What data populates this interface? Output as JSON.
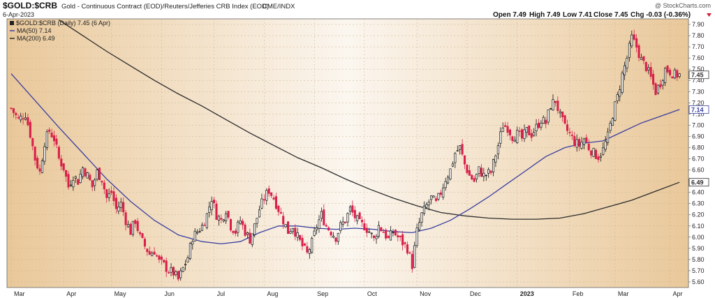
{
  "header": {
    "symbol": "$GOLD:$CRB",
    "description": "Gold - Continuous Contract (EOD)/Reuters/Jefferies CRB Index (EOD)",
    "exchange": "CME/INDX",
    "watermark": "@ StockCharts.com",
    "date": "6-Apr-2023",
    "open": "Open 7.49",
    "high": "High 7.49",
    "low": "Low 7.41",
    "close": "Close 7.45",
    "chg": "Chg -0.03 (-0.36%)",
    "chg_color": "#cc1f3a"
  },
  "legend": [
    {
      "label": "$GOLD:$CRB (Daily) 7.45 (6 Apr)",
      "color": "#222222"
    },
    {
      "label": "MA(50) 7.14",
      "color": "#3a3fa0"
    },
    {
      "label": "MA(200) 6.49",
      "color": "#2b2b2b"
    }
  ],
  "chart_data": {
    "type": "candlestick",
    "y_axis": {
      "min": 5.55,
      "max": 7.95,
      "position": "right",
      "ticks": [
        "5.60",
        "5.70",
        "5.80",
        "5.90",
        "6.00",
        "6.10",
        "6.20",
        "6.30",
        "6.40",
        "6.50",
        "6.60",
        "6.70",
        "6.80",
        "6.90",
        "7.00",
        "7.10",
        "7.20",
        "7.30",
        "7.40",
        "7.50",
        "7.60",
        "7.70",
        "7.80",
        "7.90"
      ],
      "tick_values": [
        5.6,
        5.7,
        5.8,
        5.9,
        6.0,
        6.1,
        6.2,
        6.3,
        6.4,
        6.5,
        6.6,
        6.7,
        6.8,
        6.9,
        7.0,
        7.1,
        7.2,
        7.3,
        7.4,
        7.5,
        7.6,
        7.7,
        7.8,
        7.9
      ]
    },
    "x_axis": {
      "labels": [
        "Mar",
        "Apr",
        "May",
        "Jun",
        "Jul",
        "Aug",
        "Sep",
        "Oct",
        "Nov",
        "Dec",
        "2023",
        "Feb",
        "Mar",
        "Apr"
      ],
      "label_days": [
        0,
        22,
        42,
        63,
        85,
        106,
        127,
        148,
        170,
        191,
        212,
        234,
        253,
        276
      ],
      "total_days": 282
    },
    "last_value_badges": [
      {
        "text": "7.45",
        "value": 7.45,
        "color": "#333333"
      },
      {
        "text": "7.14",
        "value": 7.14,
        "color": "#3a3fa0"
      },
      {
        "text": "6.49",
        "value": 6.49,
        "color": "#2b2b2b"
      }
    ],
    "price_series": [
      [
        0,
        7.15
      ],
      [
        3,
        7.05
      ],
      [
        6,
        7.1
      ],
      [
        8,
        6.92
      ],
      [
        10,
        6.7
      ],
      [
        12,
        6.58
      ],
      [
        14,
        6.85
      ],
      [
        16,
        6.95
      ],
      [
        18,
        6.88
      ],
      [
        20,
        6.7
      ],
      [
        22,
        6.62
      ],
      [
        24,
        6.45
      ],
      [
        26,
        6.55
      ],
      [
        28,
        6.5
      ],
      [
        30,
        6.62
      ],
      [
        32,
        6.55
      ],
      [
        34,
        6.45
      ],
      [
        36,
        6.58
      ],
      [
        38,
        6.52
      ],
      [
        40,
        6.35
      ],
      [
        42,
        6.4
      ],
      [
        44,
        6.25
      ],
      [
        46,
        6.3
      ],
      [
        48,
        6.15
      ],
      [
        50,
        6.05
      ],
      [
        52,
        6.15
      ],
      [
        54,
        6.0
      ],
      [
        56,
        5.92
      ],
      [
        58,
        5.85
      ],
      [
        60,
        5.88
      ],
      [
        62,
        5.78
      ],
      [
        64,
        5.75
      ],
      [
        66,
        5.7
      ],
      [
        68,
        5.68
      ],
      [
        70,
        5.62
      ],
      [
        72,
        5.72
      ],
      [
        74,
        5.82
      ],
      [
        76,
        6.0
      ],
      [
        78,
        6.05
      ],
      [
        80,
        6.1
      ],
      [
        82,
        6.2
      ],
      [
        84,
        6.35
      ],
      [
        86,
        6.2
      ],
      [
        88,
        6.15
      ],
      [
        90,
        6.25
      ],
      [
        92,
        6.1
      ],
      [
        94,
        6.05
      ],
      [
        96,
        6.15
      ],
      [
        98,
        6.05
      ],
      [
        100,
        5.98
      ],
      [
        102,
        6.1
      ],
      [
        104,
        6.25
      ],
      [
        106,
        6.35
      ],
      [
        108,
        6.42
      ],
      [
        110,
        6.35
      ],
      [
        112,
        6.25
      ],
      [
        114,
        6.15
      ],
      [
        116,
        6.05
      ],
      [
        118,
        6.1
      ],
      [
        120,
        6.0
      ],
      [
        122,
        5.92
      ],
      [
        124,
        5.85
      ],
      [
        126,
        5.95
      ],
      [
        128,
        6.1
      ],
      [
        130,
        6.2
      ],
      [
        132,
        6.1
      ],
      [
        134,
        6.05
      ],
      [
        136,
        6.0
      ],
      [
        138,
        6.1
      ],
      [
        140,
        6.15
      ],
      [
        142,
        6.25
      ],
      [
        144,
        6.18
      ],
      [
        146,
        6.12
      ],
      [
        148,
        6.1
      ],
      [
        150,
        6.05
      ],
      [
        152,
        5.98
      ],
      [
        154,
        6.1
      ],
      [
        156,
        6.05
      ],
      [
        158,
        5.98
      ],
      [
        160,
        6.05
      ],
      [
        162,
        6.0
      ],
      [
        164,
        5.95
      ],
      [
        166,
        5.9
      ],
      [
        168,
        5.75
      ],
      [
        170,
        6.05
      ],
      [
        172,
        6.2
      ],
      [
        174,
        6.28
      ],
      [
        176,
        6.35
      ],
      [
        178,
        6.3
      ],
      [
        180,
        6.4
      ],
      [
        182,
        6.52
      ],
      [
        184,
        6.6
      ],
      [
        186,
        6.75
      ],
      [
        188,
        6.8
      ],
      [
        190,
        6.65
      ],
      [
        192,
        6.55
      ],
      [
        194,
        6.5
      ],
      [
        196,
        6.6
      ],
      [
        198,
        6.55
      ],
      [
        201,
        6.58
      ],
      [
        204,
        6.82
      ],
      [
        206,
        7.0
      ],
      [
        208,
        6.98
      ],
      [
        210,
        6.9
      ],
      [
        212,
        6.92
      ],
      [
        214,
        6.88
      ],
      [
        216,
        6.95
      ],
      [
        218,
        6.92
      ],
      [
        220,
        6.98
      ],
      [
        222,
        7.05
      ],
      [
        224,
        7.02
      ],
      [
        226,
        7.18
      ],
      [
        228,
        7.22
      ],
      [
        230,
        7.08
      ],
      [
        232,
        6.98
      ],
      [
        234,
        6.92
      ],
      [
        236,
        6.85
      ],
      [
        238,
        6.82
      ],
      [
        240,
        6.88
      ],
      [
        242,
        6.8
      ],
      [
        244,
        6.75
      ],
      [
        246,
        6.72
      ],
      [
        248,
        6.78
      ],
      [
        250,
        6.9
      ],
      [
        252,
        7.1
      ],
      [
        254,
        7.25
      ],
      [
        256,
        7.45
      ],
      [
        258,
        7.6
      ],
      [
        260,
        7.78
      ],
      [
        262,
        7.7
      ],
      [
        264,
        7.58
      ],
      [
        266,
        7.52
      ],
      [
        268,
        7.42
      ],
      [
        270,
        7.3
      ],
      [
        272,
        7.38
      ],
      [
        274,
        7.5
      ],
      [
        276,
        7.48
      ],
      [
        278,
        7.45
      ],
      [
        280,
        7.45
      ]
    ],
    "ma50": [
      [
        0,
        7.46
      ],
      [
        10,
        7.22
      ],
      [
        20,
        6.98
      ],
      [
        30,
        6.75
      ],
      [
        40,
        6.52
      ],
      [
        50,
        6.32
      ],
      [
        60,
        6.15
      ],
      [
        70,
        6.02
      ],
      [
        80,
        5.96
      ],
      [
        88,
        5.94
      ],
      [
        96,
        5.96
      ],
      [
        104,
        6.04
      ],
      [
        112,
        6.1
      ],
      [
        120,
        6.1
      ],
      [
        128,
        6.08
      ],
      [
        136,
        6.07
      ],
      [
        144,
        6.08
      ],
      [
        152,
        6.07
      ],
      [
        160,
        6.05
      ],
      [
        168,
        6.04
      ],
      [
        176,
        6.08
      ],
      [
        184,
        6.15
      ],
      [
        192,
        6.25
      ],
      [
        200,
        6.36
      ],
      [
        208,
        6.48
      ],
      [
        216,
        6.6
      ],
      [
        224,
        6.72
      ],
      [
        232,
        6.8
      ],
      [
        240,
        6.84
      ],
      [
        248,
        6.86
      ],
      [
        256,
        6.94
      ],
      [
        264,
        7.02
      ],
      [
        272,
        7.08
      ],
      [
        280,
        7.14
      ]
    ],
    "ma200": [
      [
        20,
        7.94
      ],
      [
        30,
        7.8
      ],
      [
        40,
        7.66
      ],
      [
        50,
        7.53
      ],
      [
        60,
        7.4
      ],
      [
        70,
        7.28
      ],
      [
        80,
        7.17
      ],
      [
        90,
        7.05
      ],
      [
        100,
        6.93
      ],
      [
        110,
        6.82
      ],
      [
        120,
        6.71
      ],
      [
        130,
        6.62
      ],
      [
        140,
        6.52
      ],
      [
        150,
        6.43
      ],
      [
        160,
        6.35
      ],
      [
        170,
        6.28
      ],
      [
        180,
        6.22
      ],
      [
        190,
        6.19
      ],
      [
        200,
        6.17
      ],
      [
        210,
        6.16
      ],
      [
        220,
        6.16
      ],
      [
        230,
        6.17
      ],
      [
        240,
        6.21
      ],
      [
        250,
        6.27
      ],
      [
        260,
        6.33
      ],
      [
        270,
        6.41
      ],
      [
        280,
        6.49
      ]
    ],
    "grid": true,
    "background_gradient": [
      "#e9c89a",
      "#fbf6ef",
      "#e9c89a"
    ],
    "up_color": "#111111",
    "down_color": "#d8204a"
  }
}
